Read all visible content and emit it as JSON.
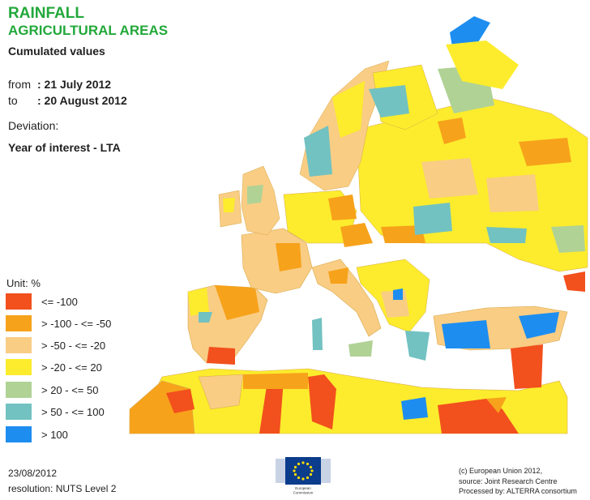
{
  "title": {
    "line1": "RAINFALL",
    "line2": "AGRICULTURAL AREAS"
  },
  "subtitle": "Cumulated values",
  "period": {
    "from_key": "from",
    "from_value": ": 21 July 2012",
    "to_key": "to",
    "to_value": ": 20 August 2012"
  },
  "deviation_label": "Deviation:",
  "year_of_interest": "Year of interest - LTA",
  "legend": {
    "unit": "Unit:  %",
    "items": [
      {
        "label": "<= -100",
        "color": "#f2501d"
      },
      {
        "label": "> -100 - <= -50",
        "color": "#f7a21b"
      },
      {
        "label": "> -50 - <= -20",
        "color": "#f9cd84"
      },
      {
        "label": "> -20 - <= 20",
        "color": "#fcec2d"
      },
      {
        "label": "> 20 - <= 50",
        "color": "#b0d295"
      },
      {
        "label": "> 50 - <= 100",
        "color": "#72c2c1"
      },
      {
        "label": "> 100",
        "color": "#1d8ef0"
      }
    ]
  },
  "footer": {
    "date": "23/08/2012",
    "resolution": "resolution: NUTS Level 2",
    "credits": [
      "(c) European Union 2012,",
      "source: Joint Research Centre",
      "Processed by: ALTERRA consortium"
    ]
  },
  "logo": {
    "line1": "European",
    "line2": "Commission",
    "color": "#0c3c8c",
    "star_color": "#ffdd00"
  }
}
